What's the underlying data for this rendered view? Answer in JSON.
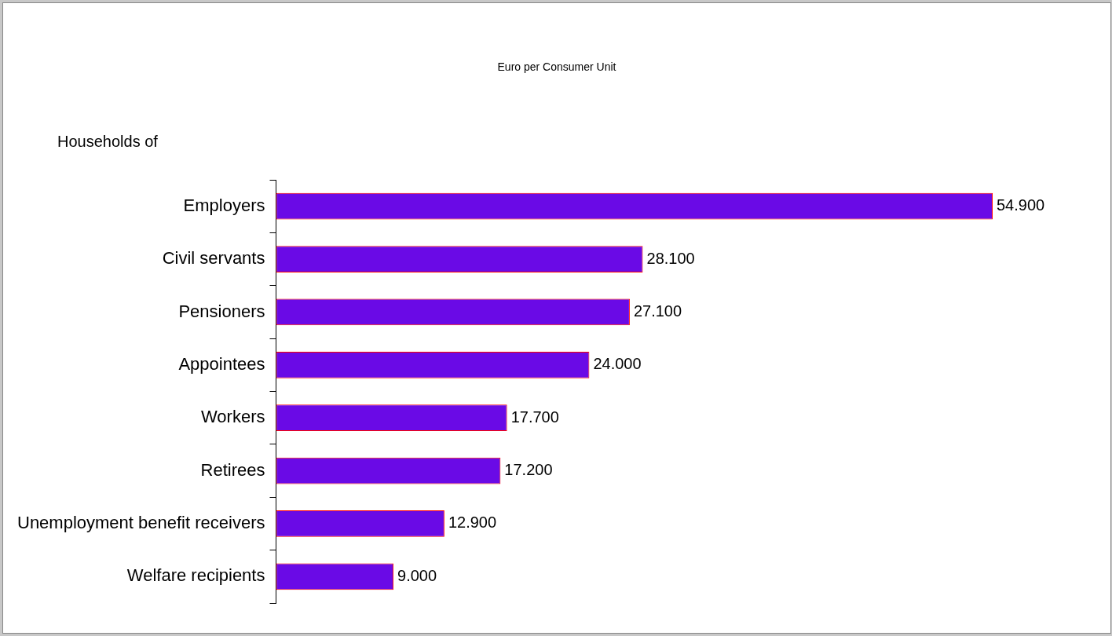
{
  "chart_data": {
    "type": "bar",
    "orientation": "horizontal",
    "title": "Euro per Consumer Unit",
    "ylabel": "Households of",
    "categories": [
      "Employers",
      "Civil servants",
      "Pensioners",
      "Appointees",
      "Workers",
      "Retirees",
      "Unemployment benefit receivers",
      "Welfare recipients"
    ],
    "values": [
      54900,
      28100,
      27100,
      24000,
      17700,
      17200,
      12900,
      9000
    ],
    "value_labels": [
      "54.900",
      "28.100",
      "27.100",
      "24.000",
      "17.700",
      "17.200",
      "12.900",
      "9.000"
    ],
    "color": "#6a0ae6"
  }
}
